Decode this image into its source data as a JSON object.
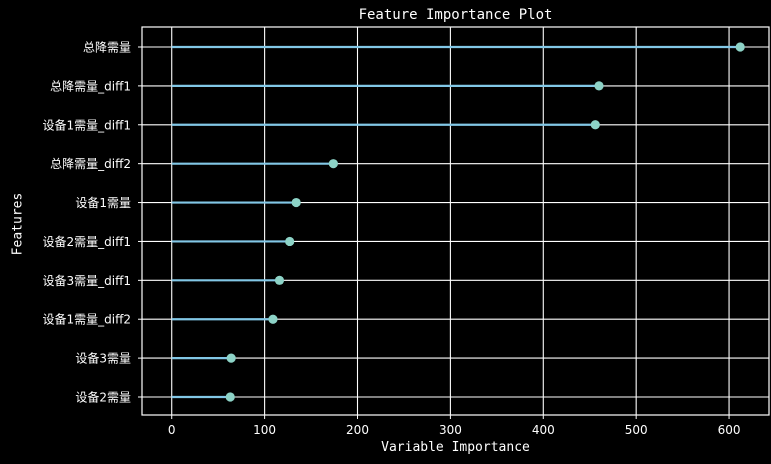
{
  "chart_data": {
    "type": "lollipop",
    "title": "Feature Importance Plot",
    "xlabel": "Variable Importance",
    "ylabel": "Features",
    "xlim": [
      -32,
      643
    ],
    "xticks": [
      0,
      100,
      200,
      300,
      400,
      500,
      600
    ],
    "xtick_labels": [
      "0",
      "100",
      "200",
      "300",
      "400",
      "500",
      "600"
    ],
    "grid": true,
    "categories": [
      "总降需量",
      "总降需量_diff1",
      "设备1需量_diff1",
      "总降需量_diff2",
      "设备1需量",
      "设备2需量_diff1",
      "设备3需量_diff1",
      "设备1需量_diff2",
      "设备3需量",
      "设备2需量"
    ],
    "values": [
      612,
      460,
      456,
      174,
      134,
      127,
      116,
      109,
      64,
      63
    ],
    "colors": {
      "background": "#000000",
      "axes_background": "#000000",
      "grid": "#ffffff",
      "stem": "#82c7e6",
      "marker": "#8dd3c7",
      "text": "#ffffff"
    }
  }
}
